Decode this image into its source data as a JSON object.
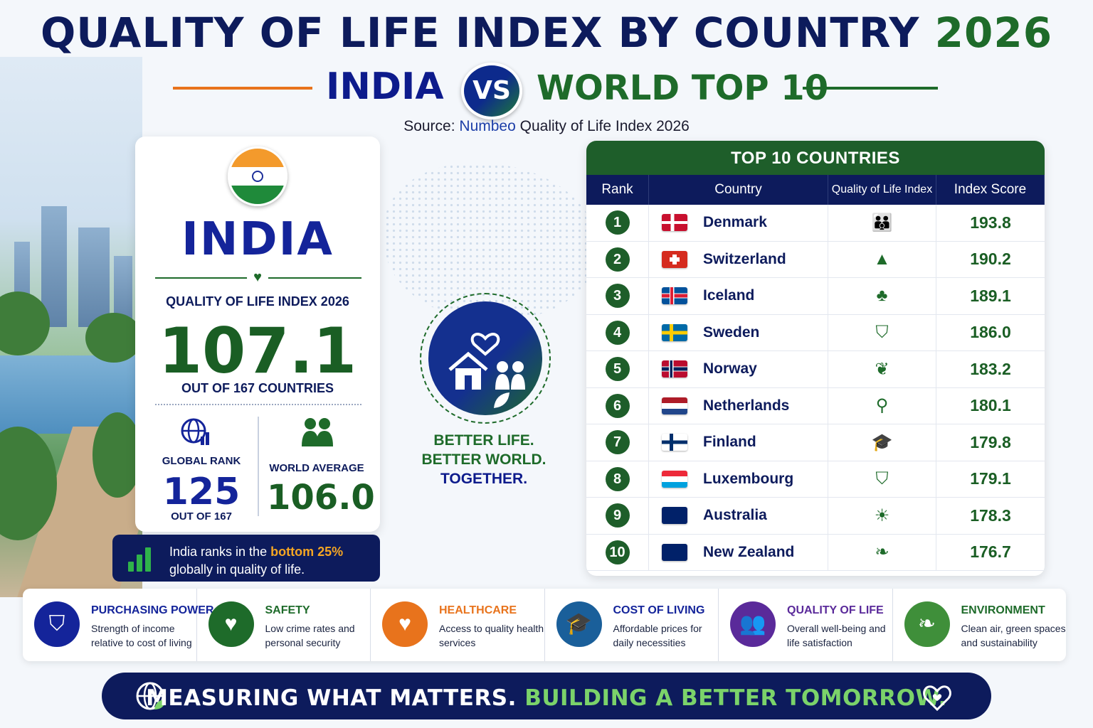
{
  "header": {
    "title": "QUALITY OF LIFE INDEX BY COUNTRY",
    "year": "2026",
    "left_label": "INDIA",
    "vs": "VS",
    "right_label": "WORLD TOP 10",
    "source_prefix": "Source:",
    "source_brand": "Numbeo",
    "source_suffix": "Quality of Life Index 2026"
  },
  "india": {
    "country": "INDIA",
    "index_label": "QUALITY OF LIFE INDEX 2026",
    "score": "107.1",
    "out_of": "OUT OF 167 COUNTRIES",
    "rank_label": "GLOBAL RANK",
    "rank": "125",
    "rank_out": "OUT OF 167",
    "avg_label": "WORLD AVERAGE",
    "avg": "106.0",
    "note_pre": "India ranks in the",
    "note_hl": "bottom 25%",
    "note_post": "globally in quality of life."
  },
  "center": {
    "line1": "BETTER LIFE.",
    "line2": "BETTER WORLD.",
    "line3": "TOGETHER."
  },
  "table": {
    "title": "TOP 10 COUNTRIES",
    "headers": [
      "Rank",
      "Country",
      "Quality of Life Index",
      "Index Score"
    ],
    "rows": [
      {
        "rank": "1",
        "country": "Denmark",
        "icon": "family-care-icon",
        "score": "193.8"
      },
      {
        "rank": "2",
        "country": "Switzerland",
        "icon": "mountain-icon",
        "score": "190.2"
      },
      {
        "rank": "3",
        "country": "Iceland",
        "icon": "tree-icon",
        "score": "189.1"
      },
      {
        "rank": "4",
        "country": "Sweden",
        "icon": "shield-check-icon",
        "score": "186.0"
      },
      {
        "rank": "5",
        "country": "Norway",
        "icon": "community-icon",
        "score": "183.2"
      },
      {
        "rank": "6",
        "country": "Netherlands",
        "icon": "bicycle-icon",
        "score": "180.1"
      },
      {
        "rank": "7",
        "country": "Finland",
        "icon": "graduation-cap-icon",
        "score": "179.8"
      },
      {
        "rank": "8",
        "country": "Luxembourg",
        "icon": "shield-check-icon",
        "score": "179.1"
      },
      {
        "rank": "9",
        "country": "Australia",
        "icon": "sun-icon",
        "score": "178.3"
      },
      {
        "rank": "10",
        "country": "New Zealand",
        "icon": "leaf-icon",
        "score": "176.7"
      }
    ]
  },
  "categories": [
    {
      "title": "PURCHASING POWER",
      "desc": "Strength of income relative to cost of living",
      "color": "#14249a",
      "title_color": "#14249a",
      "icon": "shield-icon"
    },
    {
      "title": "SAFETY",
      "desc": "Low crime rates and personal security",
      "color": "#1e6b2a",
      "title_color": "#1e6b2a",
      "icon": "heartbeat-icon"
    },
    {
      "title": "HEALTHCARE",
      "desc": "Access to quality health services",
      "color": "#e8731c",
      "title_color": "#e8731c",
      "icon": "heart-pulse-icon"
    },
    {
      "title": "COST OF LIVING",
      "desc": "Affordable prices for daily necessities",
      "color": "#1a5f9a",
      "title_color": "#14249a",
      "icon": "graduation-cap-icon"
    },
    {
      "title": "QUALITY OF LIFE",
      "desc": "Overall well-being and life satisfaction",
      "color": "#5a2a9a",
      "title_color": "#5a2a9a",
      "icon": "people-icon"
    },
    {
      "title": "ENVIRONMENT",
      "desc": "Clean air, green spaces and sustainability",
      "color": "#3f8f3a",
      "title_color": "#1e6b2a",
      "icon": "leaf-icon"
    }
  ],
  "footer": {
    "part1": "MEASURING WHAT MATTERS.",
    "part2": "BUILDING A BETTER TOMORROW."
  },
  "colors": {
    "navy": "#0d1b5c",
    "green": "#1e6b2a",
    "orange": "#e8731c"
  }
}
